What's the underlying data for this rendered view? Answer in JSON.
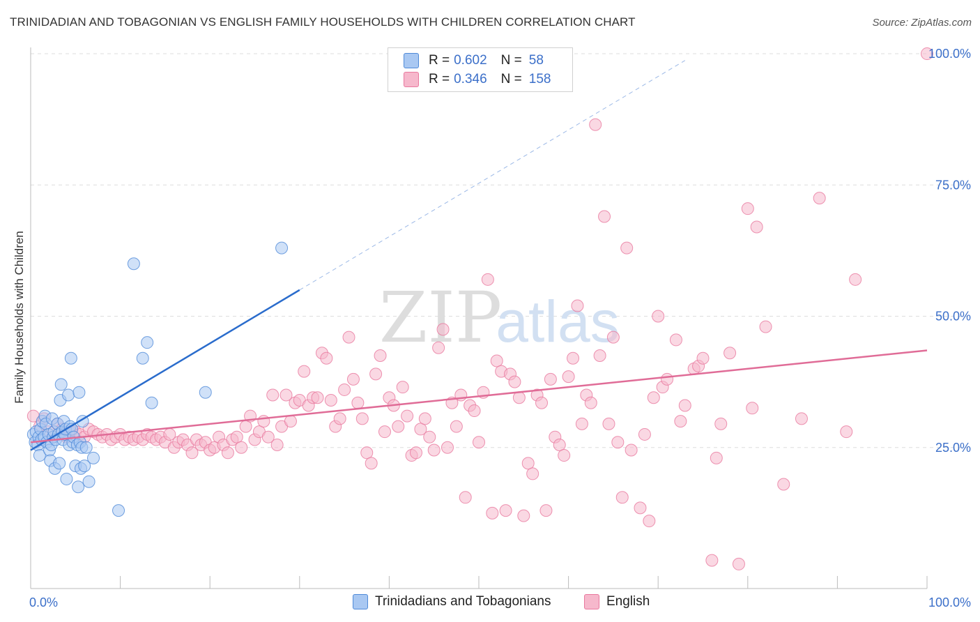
{
  "header": {
    "title": "TRINIDADIAN AND TOBAGONIAN VS ENGLISH FAMILY HOUSEHOLDS WITH CHILDREN CORRELATION CHART",
    "source": "Source: ZipAtlas.com"
  },
  "watermark": {
    "zip": "ZIP",
    "atlas": "atlas"
  },
  "legend": {
    "r_label": "R =",
    "n_label": "N =",
    "items": [
      {
        "r": "0.602",
        "n": "58",
        "color": "#a9c8f2"
      },
      {
        "r": "0.346",
        "n": "158",
        "color": "#f6b8cc"
      }
    ]
  },
  "bottom_legend": [
    {
      "label": "Trinidadians and Tobagonians",
      "color": "#a9c8f2"
    },
    {
      "label": "English",
      "color": "#f6b8cc"
    }
  ],
  "chart_data": {
    "type": "scatter",
    "title": "TRINIDADIAN AND TOBAGONIAN VS ENGLISH FAMILY HOUSEHOLDS WITH CHILDREN CORRELATION CHART",
    "xlabel": "",
    "ylabel": "Family Households with Children",
    "xlim": [
      0,
      100
    ],
    "ylim": [
      0,
      102
    ],
    "x_tick_labels": [
      "0.0%",
      "100.0%"
    ],
    "y_ticks": [
      25,
      50,
      75,
      100
    ],
    "y_tick_labels": [
      "25.0%",
      "50.0%",
      "75.0%",
      "100.0%"
    ],
    "grid": true,
    "legend_position": "top-center",
    "series": [
      {
        "name": "Trinidadians and Tobagonians",
        "color": "#4f8ad8",
        "fill": "#a9c8f2",
        "points": [
          [
            0.3,
            27.5
          ],
          [
            0.5,
            26.0
          ],
          [
            0.6,
            28.0
          ],
          [
            0.8,
            25.5
          ],
          [
            0.9,
            27.0
          ],
          [
            1.0,
            23.5
          ],
          [
            1.1,
            28.5
          ],
          [
            1.2,
            26.5
          ],
          [
            1.3,
            30.0
          ],
          [
            1.5,
            27.0
          ],
          [
            1.6,
            31.0
          ],
          [
            1.7,
            29.5
          ],
          [
            1.8,
            26.0
          ],
          [
            2.0,
            27.5
          ],
          [
            2.1,
            24.5
          ],
          [
            2.2,
            22.5
          ],
          [
            2.3,
            25.5
          ],
          [
            2.4,
            30.5
          ],
          [
            2.5,
            27.0
          ],
          [
            2.6,
            28.0
          ],
          [
            2.7,
            21.0
          ],
          [
            2.8,
            26.5
          ],
          [
            3.0,
            29.5
          ],
          [
            3.1,
            27.5
          ],
          [
            3.2,
            22.0
          ],
          [
            3.3,
            34.0
          ],
          [
            3.4,
            37.0
          ],
          [
            3.5,
            28.0
          ],
          [
            3.6,
            26.5
          ],
          [
            3.7,
            30.0
          ],
          [
            3.8,
            27.5
          ],
          [
            3.9,
            28.5
          ],
          [
            4.0,
            19.0
          ],
          [
            4.2,
            35.0
          ],
          [
            4.3,
            25.5
          ],
          [
            4.4,
            29.0
          ],
          [
            4.5,
            42.0
          ],
          [
            4.6,
            28.5
          ],
          [
            4.7,
            26.0
          ],
          [
            4.8,
            27.0
          ],
          [
            5.0,
            21.5
          ],
          [
            5.2,
            25.5
          ],
          [
            5.3,
            17.5
          ],
          [
            5.4,
            35.5
          ],
          [
            5.5,
            26.0
          ],
          [
            5.6,
            21.0
          ],
          [
            5.7,
            25.0
          ],
          [
            5.8,
            30.0
          ],
          [
            6.0,
            21.5
          ],
          [
            6.2,
            25.0
          ],
          [
            6.5,
            18.5
          ],
          [
            7.0,
            23.0
          ],
          [
            9.8,
            13.0
          ],
          [
            11.5,
            60.0
          ],
          [
            12.5,
            42.0
          ],
          [
            13.0,
            45.0
          ],
          [
            13.5,
            33.5
          ],
          [
            19.5,
            35.5
          ],
          [
            28.0,
            63.0
          ]
        ]
      },
      {
        "name": "English",
        "color": "#e9789e",
        "fill": "#f6b8cc",
        "points": [
          [
            0.3,
            31.0
          ],
          [
            1.0,
            29.0
          ],
          [
            1.5,
            30.5
          ],
          [
            2.0,
            28.0
          ],
          [
            2.5,
            27.0
          ],
          [
            3.0,
            29.5
          ],
          [
            3.5,
            28.5
          ],
          [
            4.0,
            27.0
          ],
          [
            4.5,
            28.0
          ],
          [
            5.0,
            28.0
          ],
          [
            5.5,
            27.5
          ],
          [
            6.0,
            27.0
          ],
          [
            6.5,
            28.5
          ],
          [
            7.0,
            28.0
          ],
          [
            7.5,
            27.5
          ],
          [
            8.0,
            27.0
          ],
          [
            8.5,
            27.5
          ],
          [
            9.0,
            26.5
          ],
          [
            9.5,
            27.0
          ],
          [
            10.0,
            27.5
          ],
          [
            10.5,
            26.5
          ],
          [
            11.0,
            27.0
          ],
          [
            11.5,
            26.5
          ],
          [
            12.0,
            27.0
          ],
          [
            12.5,
            26.5
          ],
          [
            13.0,
            27.5
          ],
          [
            13.5,
            27.0
          ],
          [
            14.0,
            26.5
          ],
          [
            14.5,
            27.0
          ],
          [
            15.0,
            26.0
          ],
          [
            15.5,
            27.5
          ],
          [
            16.0,
            25.0
          ],
          [
            16.5,
            26.0
          ],
          [
            17.0,
            26.5
          ],
          [
            17.5,
            25.5
          ],
          [
            18.0,
            24.0
          ],
          [
            18.5,
            26.5
          ],
          [
            19.0,
            25.5
          ],
          [
            19.5,
            26.0
          ],
          [
            20.0,
            24.5
          ],
          [
            20.5,
            25.0
          ],
          [
            21.0,
            27.0
          ],
          [
            21.5,
            25.5
          ],
          [
            22.0,
            24.0
          ],
          [
            22.5,
            26.5
          ],
          [
            23.0,
            27.0
          ],
          [
            23.5,
            25.0
          ],
          [
            24.0,
            29.0
          ],
          [
            24.5,
            31.0
          ],
          [
            25.0,
            26.5
          ],
          [
            25.5,
            28.0
          ],
          [
            26.0,
            30.0
          ],
          [
            26.5,
            27.0
          ],
          [
            27.0,
            35.0
          ],
          [
            27.5,
            25.5
          ],
          [
            28.0,
            29.0
          ],
          [
            28.5,
            35.0
          ],
          [
            29.0,
            30.0
          ],
          [
            29.5,
            33.5
          ],
          [
            30.0,
            34.0
          ],
          [
            30.5,
            39.5
          ],
          [
            31.0,
            33.0
          ],
          [
            31.5,
            34.5
          ],
          [
            32.0,
            34.5
          ],
          [
            32.5,
            43.0
          ],
          [
            33.0,
            42.0
          ],
          [
            33.5,
            34.0
          ],
          [
            34.0,
            29.0
          ],
          [
            34.5,
            30.5
          ],
          [
            35.0,
            36.0
          ],
          [
            35.5,
            46.0
          ],
          [
            36.0,
            38.0
          ],
          [
            36.5,
            33.5
          ],
          [
            37.0,
            30.5
          ],
          [
            37.5,
            24.0
          ],
          [
            38.0,
            22.0
          ],
          [
            38.5,
            39.0
          ],
          [
            39.0,
            42.5
          ],
          [
            39.5,
            28.0
          ],
          [
            40.0,
            34.5
          ],
          [
            40.5,
            33.0
          ],
          [
            41.0,
            29.0
          ],
          [
            41.5,
            36.5
          ],
          [
            42.0,
            31.0
          ],
          [
            42.5,
            23.5
          ],
          [
            43.0,
            24.0
          ],
          [
            43.5,
            28.5
          ],
          [
            44.0,
            30.5
          ],
          [
            44.5,
            27.0
          ],
          [
            45.0,
            24.5
          ],
          [
            45.5,
            44.0
          ],
          [
            46.0,
            47.5
          ],
          [
            46.5,
            25.0
          ],
          [
            47.0,
            33.5
          ],
          [
            47.5,
            29.0
          ],
          [
            48.0,
            35.0
          ],
          [
            48.5,
            15.5
          ],
          [
            49.0,
            33.0
          ],
          [
            49.5,
            32.0
          ],
          [
            50.0,
            26.0
          ],
          [
            50.5,
            35.5
          ],
          [
            51.0,
            57.0
          ],
          [
            51.5,
            12.5
          ],
          [
            52.0,
            41.5
          ],
          [
            52.5,
            39.5
          ],
          [
            53.0,
            13.0
          ],
          [
            53.5,
            39.0
          ],
          [
            54.0,
            37.5
          ],
          [
            54.5,
            34.5
          ],
          [
            55.0,
            12.0
          ],
          [
            55.5,
            22.0
          ],
          [
            56.0,
            20.0
          ],
          [
            56.5,
            35.0
          ],
          [
            57.0,
            33.5
          ],
          [
            57.5,
            13.0
          ],
          [
            58.0,
            38.0
          ],
          [
            58.5,
            27.0
          ],
          [
            59.0,
            25.5
          ],
          [
            59.5,
            23.5
          ],
          [
            60.0,
            38.5
          ],
          [
            60.5,
            42.0
          ],
          [
            61.0,
            52.0
          ],
          [
            61.5,
            29.5
          ],
          [
            62.0,
            35.0
          ],
          [
            62.5,
            33.5
          ],
          [
            63.0,
            86.5
          ],
          [
            63.5,
            42.5
          ],
          [
            64.0,
            69.0
          ],
          [
            64.5,
            29.5
          ],
          [
            65.0,
            46.0
          ],
          [
            65.5,
            26.0
          ],
          [
            66.0,
            15.5
          ],
          [
            66.5,
            63.0
          ],
          [
            67.0,
            24.5
          ],
          [
            68.0,
            13.5
          ],
          [
            68.5,
            27.5
          ],
          [
            69.0,
            11.0
          ],
          [
            69.5,
            34.5
          ],
          [
            70.0,
            50.0
          ],
          [
            70.5,
            36.5
          ],
          [
            71.0,
            38.0
          ],
          [
            72.0,
            45.5
          ],
          [
            72.5,
            30.0
          ],
          [
            73.0,
            33.0
          ],
          [
            74.0,
            40.0
          ],
          [
            74.5,
            40.5
          ],
          [
            75.0,
            42.0
          ],
          [
            76.0,
            3.5
          ],
          [
            76.5,
            23.0
          ],
          [
            77.0,
            29.5
          ],
          [
            78.0,
            43.0
          ],
          [
            79.0,
            2.8
          ],
          [
            80.0,
            70.5
          ],
          [
            80.5,
            32.5
          ],
          [
            81.0,
            67.0
          ],
          [
            82.0,
            48.0
          ],
          [
            84.0,
            18.0
          ],
          [
            86.0,
            30.5
          ],
          [
            88.0,
            72.5
          ],
          [
            91.0,
            28.0
          ],
          [
            92.0,
            57.0
          ],
          [
            100.0,
            100.0
          ]
        ]
      }
    ],
    "trend_lines": [
      {
        "series": "Trinidadians and Tobagonians",
        "x0": 0,
        "y0": 24.5,
        "x1": 30,
        "y1": 55.0,
        "dash_to_x": 73
      },
      {
        "series": "English",
        "x0": 0,
        "y0": 26.0,
        "x1": 100,
        "y1": 43.5
      }
    ]
  }
}
